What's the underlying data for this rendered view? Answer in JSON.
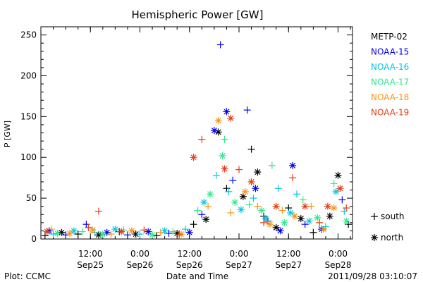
{
  "chart_data": {
    "type": "scatter",
    "title": "Hemispheric Power [GW]",
    "ylabel": "P [GW]",
    "xlabel": "Date and Time",
    "footer_left": "Plot: CCMC",
    "footer_right": "2011/09/28 03:10:07",
    "ylim": [
      0,
      260
    ],
    "xlim": [
      "2011-09-25 00:00",
      "2011-09-28 03:30"
    ],
    "y_ticks": [
      0,
      50,
      100,
      150,
      200,
      250
    ],
    "x_ticks": [
      {
        "time": "2011-09-25 12:00",
        "line1": "12:00",
        "line2": "Sep25"
      },
      {
        "time": "2011-09-26 00:00",
        "line1": "0:00",
        "line2": "Sep26"
      },
      {
        "time": "2011-09-26 12:00",
        "line1": "12:00",
        "line2": "Sep26"
      },
      {
        "time": "2011-09-27 00:00",
        "line1": "0:00",
        "line2": "Sep27"
      },
      {
        "time": "2011-09-27 12:00",
        "line1": "12:00",
        "line2": "Sep27"
      },
      {
        "time": "2011-09-28 00:00",
        "line1": "0:00",
        "line2": "Sep28"
      }
    ],
    "marker_legend": [
      {
        "marker": "plus",
        "label": "south"
      },
      {
        "marker": "asterisk",
        "label": "north"
      }
    ],
    "series": [
      {
        "name": "METP-02",
        "color": "#000000",
        "points": [
          [
            "2011-09-25 01:00",
            4,
            "plus"
          ],
          [
            "2011-09-25 05:00",
            8,
            "asterisk"
          ],
          [
            "2011-09-25 09:00",
            6,
            "plus"
          ],
          [
            "2011-09-25 14:00",
            5,
            "asterisk"
          ],
          [
            "2011-09-25 19:00",
            9,
            "plus"
          ],
          [
            "2011-09-25 23:00",
            6,
            "asterisk"
          ],
          [
            "2011-09-26 04:00",
            4,
            "plus"
          ],
          [
            "2011-09-26 09:00",
            7,
            "asterisk"
          ],
          [
            "2011-09-26 13:00",
            18,
            "plus"
          ],
          [
            "2011-09-26 16:00",
            24,
            "asterisk"
          ],
          [
            "2011-09-26 19:00",
            131,
            "asterisk"
          ],
          [
            "2011-09-26 21:00",
            62,
            "plus"
          ],
          [
            "2011-09-27 01:00",
            52,
            "asterisk"
          ],
          [
            "2011-09-27 03:00",
            110,
            "plus"
          ],
          [
            "2011-09-27 04:30",
            82,
            "asterisk"
          ],
          [
            "2011-09-27 06:00",
            28,
            "plus"
          ],
          [
            "2011-09-27 09:00",
            14,
            "asterisk"
          ],
          [
            "2011-09-27 12:00",
            38,
            "plus"
          ],
          [
            "2011-09-27 15:00",
            25,
            "asterisk"
          ],
          [
            "2011-09-27 18:00",
            8,
            "plus"
          ],
          [
            "2011-09-27 22:00",
            28,
            "asterisk"
          ],
          [
            "2011-09-28 00:00",
            78,
            "asterisk"
          ],
          [
            "2011-09-28 02:30",
            18,
            "plus"
          ]
        ]
      },
      {
        "name": "NOAA-15",
        "color": "#0000ee",
        "points": [
          [
            "2011-09-25 02:00",
            10,
            "asterisk"
          ],
          [
            "2011-09-25 06:00",
            5,
            "plus"
          ],
          [
            "2011-09-25 11:00",
            18,
            "plus"
          ],
          [
            "2011-09-25 16:00",
            8,
            "asterisk"
          ],
          [
            "2011-09-25 21:00",
            5,
            "plus"
          ],
          [
            "2011-09-26 02:00",
            9,
            "asterisk"
          ],
          [
            "2011-09-26 07:00",
            7,
            "plus"
          ],
          [
            "2011-09-26 12:00",
            8,
            "asterisk"
          ],
          [
            "2011-09-26 15:00",
            30,
            "plus"
          ],
          [
            "2011-09-26 18:00",
            133,
            "asterisk"
          ],
          [
            "2011-09-26 19:30",
            238,
            "plus"
          ],
          [
            "2011-09-26 21:00",
            156,
            "asterisk"
          ],
          [
            "2011-09-26 22:30",
            72,
            "plus"
          ],
          [
            "2011-09-27 02:00",
            158,
            "plus"
          ],
          [
            "2011-09-27 04:00",
            62,
            "asterisk"
          ],
          [
            "2011-09-27 07:00",
            22,
            "plus"
          ],
          [
            "2011-09-27 10:00",
            10,
            "asterisk"
          ],
          [
            "2011-09-27 13:00",
            90,
            "asterisk"
          ],
          [
            "2011-09-27 16:00",
            18,
            "plus"
          ],
          [
            "2011-09-27 20:00",
            12,
            "asterisk"
          ],
          [
            "2011-09-28 01:00",
            48,
            "plus"
          ]
        ]
      },
      {
        "name": "NOAA-16",
        "color": "#00c8e6",
        "points": [
          [
            "2011-09-25 03:00",
            6,
            "plus"
          ],
          [
            "2011-09-25 08:00",
            10,
            "asterisk"
          ],
          [
            "2011-09-25 13:00",
            8,
            "plus"
          ],
          [
            "2011-09-25 18:00",
            12,
            "asterisk"
          ],
          [
            "2011-09-26 00:00",
            6,
            "plus"
          ],
          [
            "2011-09-26 06:00",
            10,
            "asterisk"
          ],
          [
            "2011-09-26 11:00",
            12,
            "plus"
          ],
          [
            "2011-09-26 15:30",
            45,
            "asterisk"
          ],
          [
            "2011-09-26 18:30",
            78,
            "plus"
          ],
          [
            "2011-09-26 21:30",
            58,
            "plus"
          ],
          [
            "2011-09-27 00:30",
            36,
            "asterisk"
          ],
          [
            "2011-09-27 03:30",
            50,
            "plus"
          ],
          [
            "2011-09-27 06:30",
            25,
            "asterisk"
          ],
          [
            "2011-09-27 09:30",
            62,
            "plus"
          ],
          [
            "2011-09-27 12:30",
            32,
            "asterisk"
          ],
          [
            "2011-09-27 14:00",
            55,
            "plus"
          ],
          [
            "2011-09-27 17:00",
            22,
            "asterisk"
          ],
          [
            "2011-09-27 21:00",
            15,
            "plus"
          ],
          [
            "2011-09-27 23:30",
            58,
            "asterisk"
          ],
          [
            "2011-09-28 01:30",
            34,
            "plus"
          ]
        ]
      },
      {
        "name": "NOAA-17",
        "color": "#32e68c",
        "points": [
          [
            "2011-09-25 04:00",
            7,
            "asterisk"
          ],
          [
            "2011-09-25 10:00",
            9,
            "plus"
          ],
          [
            "2011-09-25 15:00",
            6,
            "asterisk"
          ],
          [
            "2011-09-25 20:00",
            11,
            "plus"
          ],
          [
            "2011-09-26 03:00",
            5,
            "asterisk"
          ],
          [
            "2011-09-26 08:00",
            9,
            "plus"
          ],
          [
            "2011-09-26 14:00",
            35,
            "plus"
          ],
          [
            "2011-09-26 17:00",
            55,
            "asterisk"
          ],
          [
            "2011-09-26 20:00",
            102,
            "asterisk"
          ],
          [
            "2011-09-26 20:30",
            122,
            "plus"
          ],
          [
            "2011-09-26 23:00",
            45,
            "asterisk"
          ],
          [
            "2011-09-27 02:30",
            42,
            "plus"
          ],
          [
            "2011-09-27 05:30",
            35,
            "asterisk"
          ],
          [
            "2011-09-27 08:00",
            90,
            "plus"
          ],
          [
            "2011-09-27 11:00",
            20,
            "asterisk"
          ],
          [
            "2011-09-27 15:30",
            48,
            "plus"
          ],
          [
            "2011-09-27 19:00",
            26,
            "asterisk"
          ],
          [
            "2011-09-27 23:00",
            68,
            "plus"
          ],
          [
            "2011-09-28 02:00",
            22,
            "asterisk"
          ]
        ]
      },
      {
        "name": "NOAA-18",
        "color": "#f59614",
        "points": [
          [
            "2011-09-25 02:30",
            12,
            "plus"
          ],
          [
            "2011-09-25 07:00",
            7,
            "asterisk"
          ],
          [
            "2011-09-25 12:30",
            11,
            "asterisk"
          ],
          [
            "2011-09-25 17:00",
            6,
            "plus"
          ],
          [
            "2011-09-25 22:00",
            10,
            "asterisk"
          ],
          [
            "2011-09-26 05:00",
            8,
            "plus"
          ],
          [
            "2011-09-26 10:00",
            6,
            "asterisk"
          ],
          [
            "2011-09-26 16:30",
            40,
            "plus"
          ],
          [
            "2011-09-26 19:00",
            145,
            "asterisk"
          ],
          [
            "2011-09-26 22:00",
            32,
            "plus"
          ],
          [
            "2011-09-27 01:30",
            58,
            "asterisk"
          ],
          [
            "2011-09-27 04:30",
            40,
            "plus"
          ],
          [
            "2011-09-27 07:30",
            18,
            "asterisk"
          ],
          [
            "2011-09-27 10:30",
            35,
            "plus"
          ],
          [
            "2011-09-27 13:30",
            28,
            "asterisk"
          ],
          [
            "2011-09-27 17:30",
            40,
            "plus"
          ],
          [
            "2011-09-27 20:30",
            12,
            "asterisk"
          ],
          [
            "2011-09-27 23:00",
            38,
            "asterisk"
          ]
        ]
      },
      {
        "name": "NOAA-19",
        "color": "#e63c14",
        "points": [
          [
            "2011-09-25 01:30",
            9,
            "asterisk"
          ],
          [
            "2011-09-25 11:30",
            14,
            "plus"
          ],
          [
            "2011-09-25 14:00",
            34,
            "plus"
          ],
          [
            "2011-09-25 19:30",
            9,
            "asterisk"
          ],
          [
            "2011-09-26 01:00",
            11,
            "plus"
          ],
          [
            "2011-09-26 09:30",
            5,
            "plus"
          ],
          [
            "2011-09-26 13:00",
            100,
            "asterisk"
          ],
          [
            "2011-09-26 15:00",
            122,
            "plus"
          ],
          [
            "2011-09-26 20:30",
            86,
            "asterisk"
          ],
          [
            "2011-09-26 22:00",
            148,
            "asterisk"
          ],
          [
            "2011-09-27 00:00",
            85,
            "plus"
          ],
          [
            "2011-09-27 03:00",
            70,
            "asterisk"
          ],
          [
            "2011-09-27 06:00",
            20,
            "plus"
          ],
          [
            "2011-09-27 09:00",
            40,
            "asterisk"
          ],
          [
            "2011-09-27 13:00",
            75,
            "plus"
          ],
          [
            "2011-09-27 16:00",
            40,
            "asterisk"
          ],
          [
            "2011-09-27 19:30",
            20,
            "plus"
          ],
          [
            "2011-09-27 21:30",
            40,
            "asterisk"
          ],
          [
            "2011-09-28 00:30",
            62,
            "asterisk"
          ],
          [
            "2011-09-28 02:00",
            38,
            "plus"
          ]
        ]
      }
    ]
  }
}
